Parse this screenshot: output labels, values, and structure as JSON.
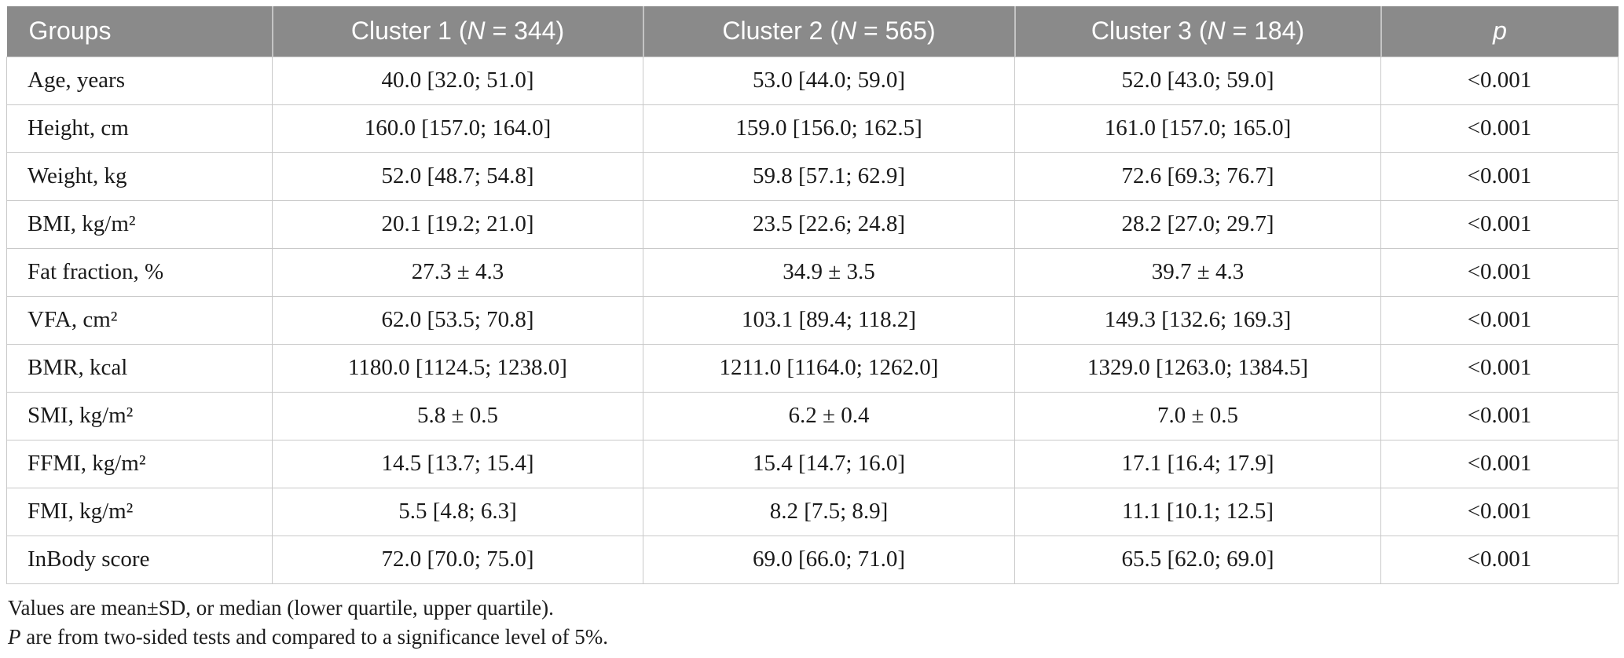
{
  "table": {
    "header": {
      "groups": "Groups",
      "cluster1_prefix": "Cluster 1 (",
      "cluster1_n": "N",
      "cluster1_suffix": " = 344)",
      "cluster2_prefix": "Cluster 2 (",
      "cluster2_n": "N",
      "cluster2_suffix": " = 565)",
      "cluster3_prefix": "Cluster 3 (",
      "cluster3_n": "N",
      "cluster3_suffix": " = 184)",
      "p": "p"
    },
    "rows": [
      {
        "label": "Age, years",
        "c1": "40.0 [32.0; 51.0]",
        "c2": "53.0 [44.0; 59.0]",
        "c3": "52.0 [43.0; 59.0]",
        "p": "<0.001"
      },
      {
        "label": "Height, cm",
        "c1": "160.0 [157.0; 164.0]",
        "c2": "159.0 [156.0; 162.5]",
        "c3": "161.0 [157.0; 165.0]",
        "p": "<0.001"
      },
      {
        "label": "Weight, kg",
        "c1": "52.0 [48.7; 54.8]",
        "c2": "59.8 [57.1; 62.9]",
        "c3": "72.6 [69.3; 76.7]",
        "p": "<0.001"
      },
      {
        "label": "BMI, kg/m²",
        "c1": "20.1 [19.2; 21.0]",
        "c2": "23.5 [22.6; 24.8]",
        "c3": "28.2 [27.0; 29.7]",
        "p": "<0.001"
      },
      {
        "label": "Fat fraction, %",
        "c1": "27.3 ± 4.3",
        "c2": "34.9 ± 3.5",
        "c3": "39.7 ± 4.3",
        "p": "<0.001"
      },
      {
        "label": "VFA, cm²",
        "c1": "62.0 [53.5; 70.8]",
        "c2": "103.1 [89.4; 118.2]",
        "c3": "149.3 [132.6; 169.3]",
        "p": "<0.001"
      },
      {
        "label": "BMR, kcal",
        "c1": "1180.0 [1124.5; 1238.0]",
        "c2": "1211.0 [1164.0; 1262.0]",
        "c3": "1329.0 [1263.0; 1384.5]",
        "p": "<0.001"
      },
      {
        "label": "SMI, kg/m²",
        "c1": "5.8 ± 0.5",
        "c2": "6.2 ± 0.4",
        "c3": "7.0 ± 0.5",
        "p": "<0.001"
      },
      {
        "label": "FFMI, kg/m²",
        "c1": "14.5 [13.7; 15.4]",
        "c2": "15.4 [14.7; 16.0]",
        "c3": "17.1 [16.4; 17.9]",
        "p": "<0.001"
      },
      {
        "label": "FMI, kg/m²",
        "c1": "5.5 [4.8; 6.3]",
        "c2": "8.2 [7.5; 8.9]",
        "c3": "11.1 [10.1; 12.5]",
        "p": "<0.001"
      },
      {
        "label": "InBody score",
        "c1": "72.0 [70.0; 75.0]",
        "c2": "69.0 [66.0; 71.0]",
        "c3": "65.5 [62.0; 69.0]",
        "p": "<0.001"
      }
    ]
  },
  "footnotes": {
    "line1": "Values are mean±SD, or median (lower quartile, upper quartile).",
    "line2_italic": "P",
    "line2_rest": " are from two-sided tests and compared to a significance level of 5%."
  },
  "colors": {
    "header_bg": "#8a8a8a",
    "header_text": "#ffffff",
    "grid_border": "#c9c9c9",
    "body_text": "#1a1a1a"
  }
}
